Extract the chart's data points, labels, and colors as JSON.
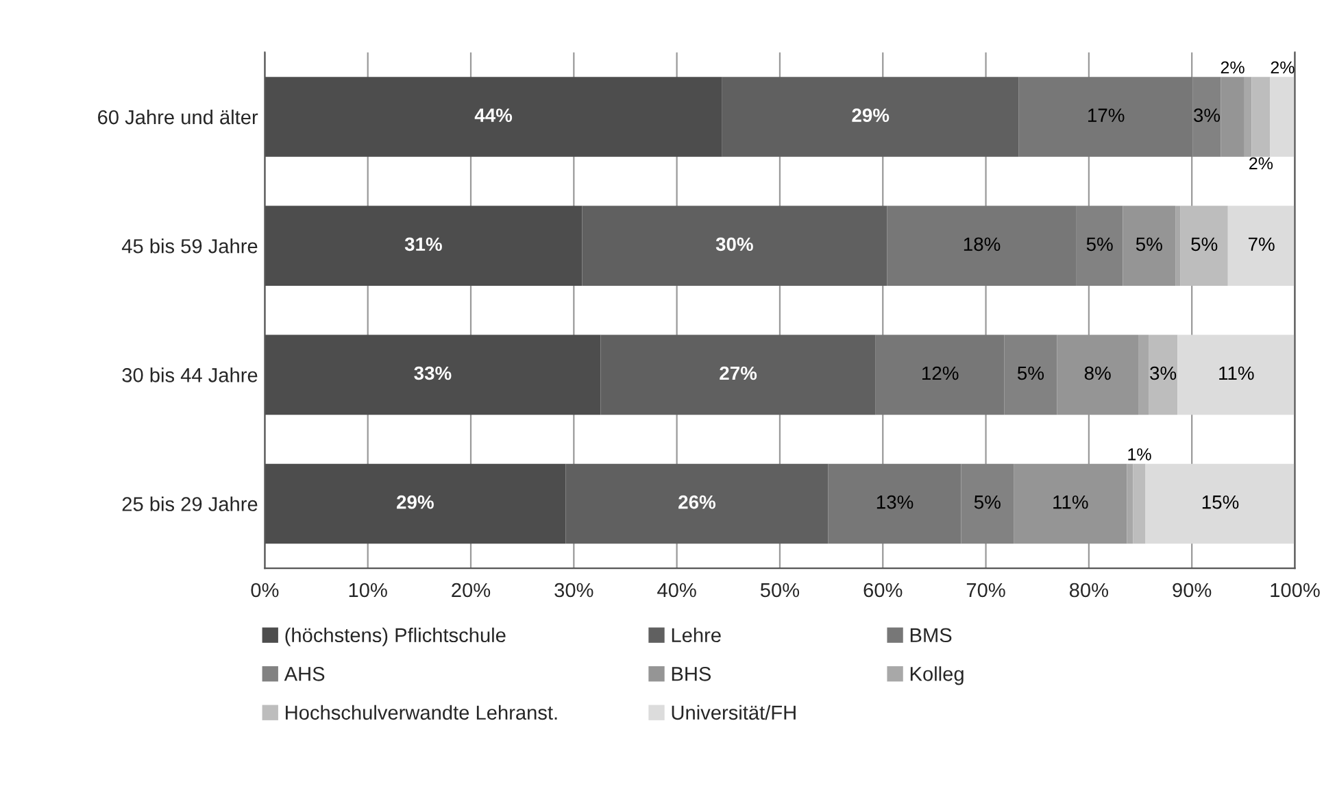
{
  "chart_data": {
    "type": "bar",
    "orientation": "horizontal",
    "stacked": true,
    "categories": [
      "60 Jahre und älter",
      "45 bis 59 Jahre",
      "30 bis 44 Jahre",
      "25 bis 29 Jahre"
    ],
    "series": [
      {
        "name": "(höchstens) Pflichtschule",
        "color": "#4d4d4d",
        "values": [
          44.4,
          30.8,
          32.6,
          29.2
        ],
        "value_labels": [
          "44%",
          "31%",
          "33%",
          "29%"
        ]
      },
      {
        "name": "Lehre",
        "color": "#606060",
        "values": [
          28.8,
          29.6,
          26.7,
          25.5
        ],
        "value_labels": [
          "29%",
          "30%",
          "27%",
          "26%"
        ]
      },
      {
        "name": "BMS",
        "color": "#777777",
        "values": [
          16.9,
          18.4,
          12.5,
          12.9
        ],
        "value_labels": [
          "17%",
          "18%",
          "12%",
          "13%"
        ]
      },
      {
        "name": "AHS",
        "color": "#828282",
        "values": [
          2.7,
          4.5,
          5.1,
          5.1
        ],
        "value_labels": [
          "3%",
          "5%",
          "5%",
          "5%"
        ]
      },
      {
        "name": "BHS",
        "color": "#959595",
        "values": [
          2.3,
          5.1,
          7.9,
          11.0
        ],
        "value_labels": [
          "2%",
          "5%",
          "8%",
          "11%"
        ]
      },
      {
        "name": "Kolleg",
        "color": "#a8a8a8",
        "values": [
          0.7,
          0.5,
          1.0,
          0.6
        ],
        "value_labels": [
          null,
          null,
          null,
          null
        ]
      },
      {
        "name": "Hochschulverwandte Lehranst.",
        "color": "#bdbdbd",
        "values": [
          1.8,
          4.6,
          2.8,
          1.2
        ],
        "value_labels": [
          "2%",
          "5%",
          "3%",
          "1%"
        ]
      },
      {
        "name": "Universität/FH",
        "color": "#dcdcdc",
        "values": [
          2.4,
          6.5,
          11.4,
          14.5
        ],
        "value_labels": [
          "2%",
          "7%",
          "11%",
          "15%"
        ]
      }
    ],
    "xlim": [
      0,
      100
    ],
    "xticks": [
      {
        "value": 0,
        "label": "0%"
      },
      {
        "value": 10,
        "label": "10%"
      },
      {
        "value": 20,
        "label": "20%"
      },
      {
        "value": 30,
        "label": "30%"
      },
      {
        "value": 40,
        "label": "40%"
      },
      {
        "value": 50,
        "label": "50%"
      },
      {
        "value": 60,
        "label": "60%"
      },
      {
        "value": 70,
        "label": "70%"
      },
      {
        "value": 80,
        "label": "80%"
      },
      {
        "value": 90,
        "label": "90%"
      },
      {
        "value": 100,
        "label": "100%"
      }
    ],
    "grid": "x",
    "legend": "bottom"
  }
}
